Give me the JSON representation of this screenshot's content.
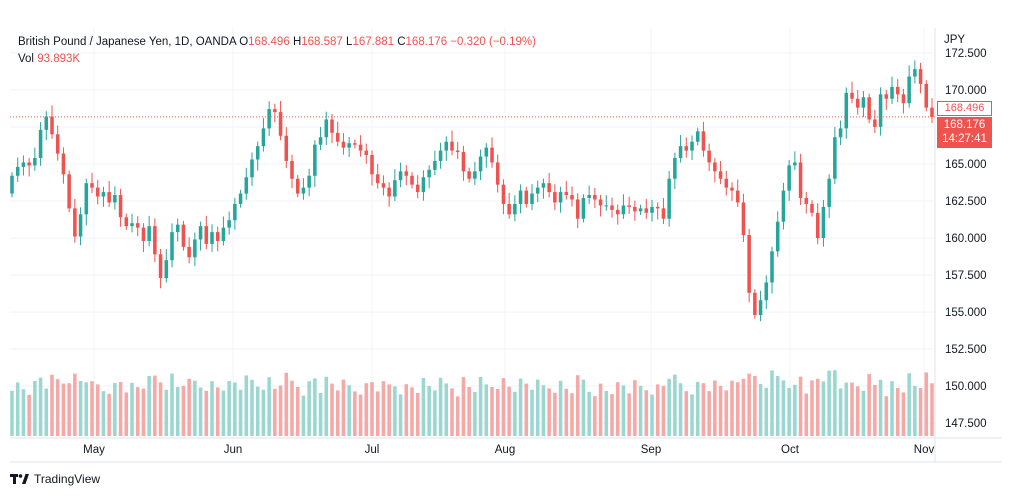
{
  "header": {
    "symbol": "British Pound / Japanese Yen, 1D, OANDA",
    "o_label": "O",
    "o_value": "168.496",
    "h_label": "H",
    "h_value": "168.587",
    "l_label": "L",
    "l_value": "167.881",
    "c_label": "C",
    "c_value": "168.176",
    "change": "−0.320 (−0.19%)",
    "vol_label": "Vol",
    "vol_value": "93.893K"
  },
  "axis": {
    "currency": "JPY",
    "open_tag": "168.496",
    "last_price": "168.176",
    "countdown": "14:27:41"
  },
  "brand": {
    "name": "TradingView"
  },
  "colors": {
    "up": "#26a69a",
    "down": "#ef5350",
    "vol_up": "#9ad7d1",
    "vol_down": "#f5a8a6",
    "grid": "#f0f3fa"
  },
  "chart_data": {
    "type": "candlestick",
    "title": "British Pound / Japanese Yen, 1D, OANDA",
    "y_ticks": [
      "172.500",
      "170.000",
      "167.500",
      "165.000",
      "162.500",
      "160.000",
      "157.500",
      "155.000",
      "152.500",
      "150.000",
      "147.500"
    ],
    "x_ticks": [
      "May",
      "Jun",
      "Jul",
      "Aug",
      "Sep",
      "Oct",
      "Nov"
    ],
    "ylim": [
      146.5,
      173.5
    ],
    "grid": true,
    "legend": "top-left",
    "last_close": 168.176,
    "closes": [
      164.2,
      164.8,
      165.1,
      164.9,
      165.4,
      167.3,
      168.2,
      167.0,
      165.7,
      164.3,
      162.0,
      160.1,
      161.6,
      163.7,
      163.4,
      162.8,
      163.1,
      162.4,
      162.9,
      161.4,
      160.8,
      161.0,
      160.7,
      159.8,
      160.8,
      158.9,
      157.3,
      158.5,
      160.4,
      160.9,
      159.4,
      158.7,
      159.9,
      160.8,
      159.6,
      160.4,
      159.8,
      160.7,
      161.2,
      162.3,
      163.0,
      164.1,
      165.3,
      166.2,
      167.4,
      168.7,
      168.5,
      166.9,
      165.2,
      164.0,
      163.0,
      163.4,
      164.2,
      166.3,
      166.8,
      168.0,
      167.1,
      166.5,
      166.1,
      166.4,
      166.3,
      165.9,
      165.6,
      164.3,
      163.7,
      163.4,
      162.8,
      163.9,
      164.5,
      164.2,
      163.6,
      163.1,
      164.1,
      164.6,
      165.2,
      165.9,
      166.5,
      165.9,
      165.8,
      164.5,
      164.0,
      164.5,
      165.5,
      166.1,
      165.1,
      163.6,
      162.3,
      161.6,
      162.3,
      163.2,
      162.3,
      163.0,
      163.4,
      163.7,
      163.1,
      162.4,
      163.1,
      162.9,
      162.6,
      161.3,
      162.7,
      162.9,
      162.6,
      162.2,
      162.2,
      161.9,
      161.6,
      162.2,
      162.1,
      161.8,
      162.0,
      161.7,
      162.1,
      162.0,
      161.3,
      164.0,
      165.4,
      166.2,
      165.9,
      166.5,
      167.2,
      165.9,
      165.1,
      164.5,
      164.0,
      163.4,
      163.2,
      162.4,
      160.2,
      156.3,
      154.8,
      155.8,
      157.0,
      159.1,
      161.1,
      163.2,
      164.9,
      165.1,
      162.7,
      162.3,
      161.7,
      160.0,
      162.1,
      164.0,
      166.8,
      167.4,
      169.8,
      169.4,
      168.8,
      169.5,
      168.0,
      167.5,
      169.7,
      169.4,
      170.2,
      169.7,
      169.1,
      170.9,
      171.4,
      170.4,
      168.8,
      168.176
    ]
  }
}
